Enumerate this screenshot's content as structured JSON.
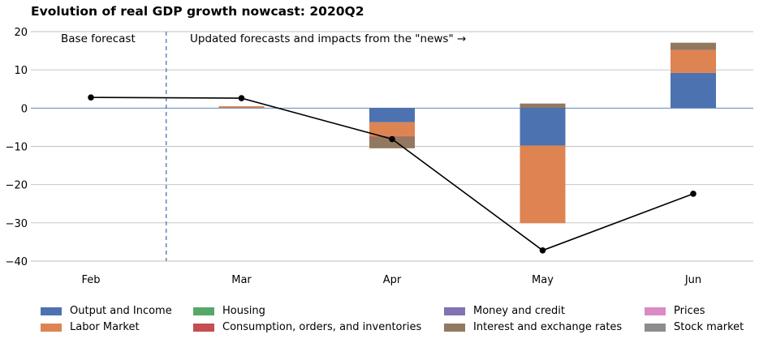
{
  "chart_data": {
    "type": "bar",
    "title": "Evolution of real GDP growth nowcast: 2020Q2",
    "categories": [
      "Feb",
      "Mar",
      "Apr",
      "May",
      "Jun"
    ],
    "ylim": [
      -40,
      20
    ],
    "yticks": [
      20,
      10,
      0,
      -10,
      -20,
      -30,
      -40
    ],
    "ytick_labels": [
      "20",
      "10",
      "0",
      "−10",
      "−20",
      "−30",
      "−40"
    ],
    "annotations": {
      "base": "Base forecast",
      "updates": "Updated forecasts and impacts from the \"news\"  →"
    },
    "nowcast_line": {
      "x": [
        "Feb",
        "Mar",
        "Apr",
        "May",
        "Jun"
      ],
      "y": [
        2.8,
        2.6,
        -8.1,
        -37.2,
        -22.4
      ]
    },
    "series": [
      {
        "name": "Output and Income",
        "color": "#4c72b0",
        "values": [
          0,
          0,
          -3.7,
          -9.8,
          9.2
        ]
      },
      {
        "name": "Labor Market",
        "color": "#dd8452",
        "values": [
          0,
          0.5,
          -3.6,
          -20.3,
          6.0
        ]
      },
      {
        "name": "Housing",
        "color": "#55a868",
        "values": [
          0,
          0,
          0,
          0,
          0
        ]
      },
      {
        "name": "Consumption, orders, and inventories",
        "color": "#c44e52",
        "values": [
          0,
          0,
          -0.2,
          0,
          0
        ]
      },
      {
        "name": "Money and credit",
        "color": "#8172b3",
        "values": [
          0,
          0,
          0,
          0,
          0
        ]
      },
      {
        "name": "Interest and exchange rates",
        "color": "#937860",
        "values": [
          0,
          0,
          -3.0,
          1.2,
          1.9
        ]
      },
      {
        "name": "Prices",
        "color": "#da8bc3",
        "values": [
          0,
          0,
          0,
          0,
          0
        ]
      },
      {
        "name": "Stock market",
        "color": "#8c8c8c",
        "values": [
          0,
          0,
          0,
          0,
          0
        ]
      }
    ],
    "grid": true,
    "legend": "bottom"
  }
}
